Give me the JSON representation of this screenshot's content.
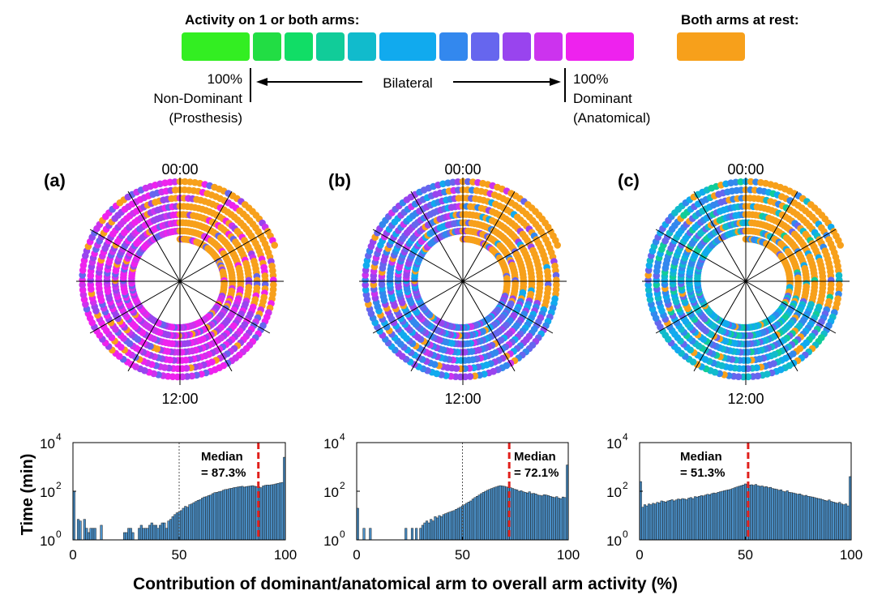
{
  "legend": {
    "activity_title": "Activity on 1 or both arms:",
    "rest_title": "Both arms at rest:",
    "scale_colors": [
      "#33ee22",
      "#22dd44",
      "#11dd66",
      "#11cc99",
      "#11bbcc",
      "#11aaee",
      "#3388ee",
      "#6666ee",
      "#9944ee",
      "#cc33ee",
      "#ee22ee"
    ],
    "rest_color": "#f7a01b",
    "left_label": [
      "100%",
      "Non-Dominant",
      "(Prosthesis)"
    ],
    "center_label": "Bilateral",
    "right_label": [
      "100%",
      "Dominant",
      "(Anatomical)"
    ]
  },
  "polar": [
    {
      "panel": "(a)",
      "top_label": "00:00",
      "bottom_label": "12:00"
    },
    {
      "panel": "(b)",
      "top_label": "00:00",
      "bottom_label": "12:00"
    },
    {
      "panel": "(c)",
      "top_label": "00:00",
      "bottom_label": "12:00"
    }
  ],
  "shared_xlabel": "Contribution of dominant/anatomical arm to overall arm activity (%)",
  "chart_data": [
    {
      "type": "bar",
      "panel": "a",
      "ylabel": "Time (min)",
      "y_scale": "log",
      "ylim": [
        1,
        10000
      ],
      "yticks": [
        "10",
        "10",
        "10"
      ],
      "ytick_exponents": [
        "0",
        "2",
        "4"
      ],
      "xlim": [
        0,
        100
      ],
      "xticks": [
        "0",
        "50",
        "100"
      ],
      "median_label": [
        "Median",
        "= 87.3%"
      ],
      "median": 87.3,
      "bilateral_ref": 50,
      "bar_color": "#4a8fc7",
      "x": [
        0,
        1,
        2,
        3,
        4,
        5,
        6,
        7,
        8,
        9,
        10,
        11,
        12,
        13,
        14,
        15,
        16,
        17,
        18,
        19,
        20,
        21,
        22,
        23,
        24,
        25,
        26,
        27,
        28,
        29,
        30,
        31,
        32,
        33,
        34,
        35,
        36,
        37,
        38,
        39,
        40,
        41,
        42,
        43,
        44,
        45,
        46,
        47,
        48,
        49,
        50,
        51,
        52,
        53,
        54,
        55,
        56,
        57,
        58,
        59,
        60,
        61,
        62,
        63,
        64,
        65,
        66,
        67,
        68,
        69,
        70,
        71,
        72,
        73,
        74,
        75,
        76,
        77,
        78,
        79,
        80,
        81,
        82,
        83,
        84,
        85,
        86,
        87,
        88,
        89,
        90,
        91,
        92,
        93,
        94,
        95,
        96,
        97,
        98,
        99,
        100
      ],
      "values": [
        100,
        1,
        7,
        6,
        1,
        7,
        3,
        2,
        3,
        3,
        3,
        1,
        1,
        4,
        1,
        1,
        1,
        1,
        1,
        1,
        1,
        1,
        1,
        1,
        2,
        2,
        3,
        3,
        2,
        1,
        1,
        3,
        4,
        3,
        3,
        3,
        4,
        5,
        4,
        4,
        3,
        4,
        5,
        5,
        3,
        6,
        7,
        9,
        11,
        13,
        14,
        16,
        20,
        24,
        22,
        28,
        30,
        34,
        38,
        42,
        45,
        52,
        58,
        60,
        66,
        70,
        80,
        88,
        90,
        96,
        100,
        110,
        118,
        120,
        128,
        132,
        140,
        145,
        150,
        155,
        160,
        148,
        155,
        160,
        165,
        170,
        160,
        155,
        150,
        140,
        165,
        175,
        180,
        178,
        185,
        190,
        200,
        210,
        220,
        230,
        2500
      ]
    },
    {
      "type": "bar",
      "panel": "b",
      "y_scale": "log",
      "ylim": [
        1,
        10000
      ],
      "yticks": [
        "10",
        "10",
        "10"
      ],
      "ytick_exponents": [
        "0",
        "2",
        "4"
      ],
      "xlim": [
        0,
        100
      ],
      "xticks": [
        "0",
        "50",
        "100"
      ],
      "median_label": [
        "Median",
        "= 72.1%"
      ],
      "median": 72.1,
      "bilateral_ref": 50,
      "bar_color": "#4a8fc7",
      "x": [
        0,
        1,
        2,
        3,
        4,
        5,
        6,
        7,
        8,
        9,
        10,
        11,
        12,
        13,
        14,
        15,
        16,
        17,
        18,
        19,
        20,
        21,
        22,
        23,
        24,
        25,
        26,
        27,
        28,
        29,
        30,
        31,
        32,
        33,
        34,
        35,
        36,
        37,
        38,
        39,
        40,
        41,
        42,
        43,
        44,
        45,
        46,
        47,
        48,
        49,
        50,
        51,
        52,
        53,
        54,
        55,
        56,
        57,
        58,
        59,
        60,
        61,
        62,
        63,
        64,
        65,
        66,
        67,
        68,
        69,
        70,
        71,
        72,
        73,
        74,
        75,
        76,
        77,
        78,
        79,
        80,
        81,
        82,
        83,
        84,
        85,
        86,
        87,
        88,
        89,
        90,
        91,
        92,
        93,
        94,
        95,
        96,
        97,
        98,
        99,
        100
      ],
      "values": [
        20,
        1,
        1,
        3,
        1,
        1,
        3,
        1,
        1,
        1,
        1,
        1,
        1,
        1,
        1,
        1,
        1,
        1,
        1,
        1,
        1,
        1,
        1,
        3,
        1,
        1,
        3,
        1,
        3,
        1,
        3,
        4,
        5,
        6,
        5,
        7,
        6,
        9,
        8,
        10,
        9,
        11,
        12,
        13,
        14,
        15,
        16,
        18,
        20,
        22,
        25,
        28,
        32,
        36,
        40,
        48,
        55,
        62,
        70,
        80,
        90,
        100,
        110,
        120,
        130,
        140,
        150,
        160,
        170,
        165,
        160,
        150,
        145,
        140,
        130,
        120,
        115,
        100,
        105,
        95,
        90,
        85,
        95,
        80,
        82,
        78,
        70,
        68,
        65,
        72,
        70,
        66,
        62,
        58,
        55,
        60,
        52,
        50,
        58,
        55,
        1200
      ]
    },
    {
      "type": "bar",
      "panel": "c",
      "y_scale": "log",
      "ylim": [
        1,
        10000
      ],
      "yticks": [
        "10",
        "10",
        "10"
      ],
      "ytick_exponents": [
        "0",
        "2",
        "4"
      ],
      "xlim": [
        0,
        100
      ],
      "xticks": [
        "0",
        "50",
        "100"
      ],
      "median_label": [
        "Median",
        "= 51.3%"
      ],
      "median": 51.3,
      "bar_color": "#4a8fc7",
      "x": [
        0,
        1,
        2,
        3,
        4,
        5,
        6,
        7,
        8,
        9,
        10,
        11,
        12,
        13,
        14,
        15,
        16,
        17,
        18,
        19,
        20,
        21,
        22,
        23,
        24,
        25,
        26,
        27,
        28,
        29,
        30,
        31,
        32,
        33,
        34,
        35,
        36,
        37,
        38,
        39,
        40,
        41,
        42,
        43,
        44,
        45,
        46,
        47,
        48,
        49,
        50,
        51,
        52,
        53,
        54,
        55,
        56,
        57,
        58,
        59,
        60,
        61,
        62,
        63,
        64,
        65,
        66,
        67,
        68,
        69,
        70,
        71,
        72,
        73,
        74,
        75,
        76,
        77,
        78,
        79,
        80,
        81,
        82,
        83,
        84,
        85,
        86,
        87,
        88,
        89,
        90,
        91,
        92,
        93,
        94,
        95,
        96,
        97,
        98,
        99,
        100
      ],
      "values": [
        250,
        22,
        28,
        25,
        30,
        28,
        32,
        30,
        35,
        33,
        40,
        38,
        36,
        40,
        42,
        45,
        40,
        44,
        48,
        46,
        50,
        48,
        45,
        52,
        55,
        50,
        60,
        58,
        62,
        66,
        64,
        70,
        75,
        72,
        80,
        85,
        82,
        90,
        95,
        100,
        105,
        110,
        115,
        120,
        130,
        140,
        150,
        160,
        170,
        180,
        200,
        190,
        180,
        185,
        175,
        190,
        170,
        160,
        165,
        150,
        155,
        140,
        145,
        130,
        125,
        120,
        110,
        115,
        100,
        95,
        105,
        90,
        88,
        85,
        80,
        75,
        78,
        70,
        65,
        68,
        62,
        60,
        58,
        55,
        52,
        50,
        48,
        45,
        42,
        40,
        44,
        38,
        36,
        34,
        32,
        35,
        30,
        28,
        30,
        25,
        400
      ]
    }
  ]
}
